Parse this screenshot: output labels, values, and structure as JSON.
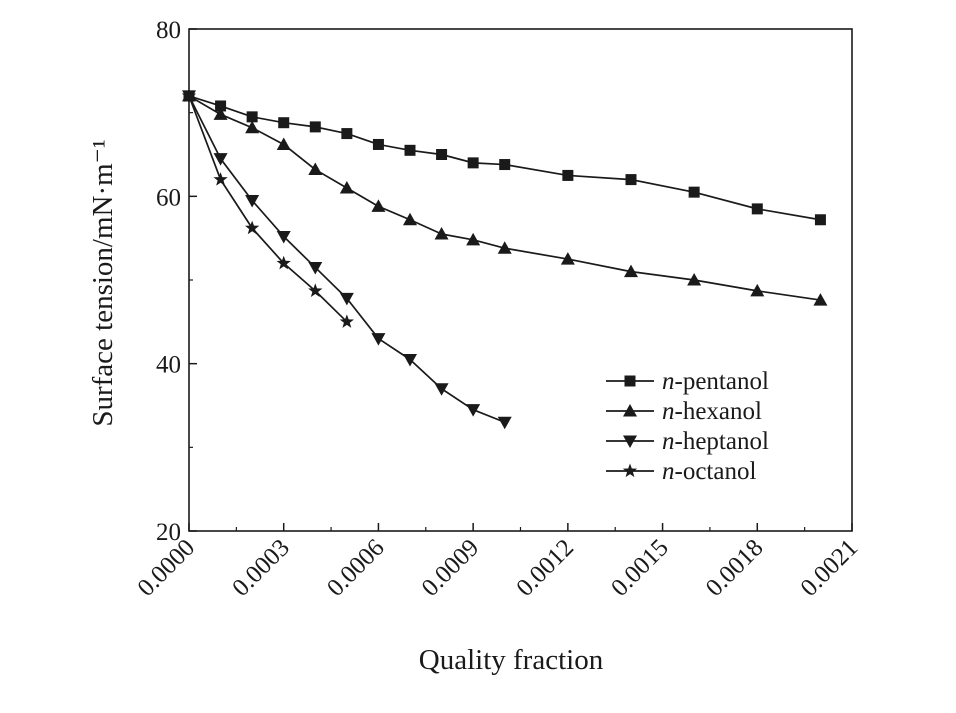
{
  "chart_data": {
    "type": "line",
    "xlabel": "Quality fraction",
    "ylabel": "Surface tension/mN·m⁻¹",
    "xlim": [
      0,
      0.0021
    ],
    "ylim": [
      20,
      80
    ],
    "x_ticks": [
      "0.0000",
      "0.0003",
      "0.0006",
      "0.0009",
      "0.0012",
      "0.0015",
      "0.0018",
      "0.0021"
    ],
    "y_ticks": [
      "20",
      "40",
      "60",
      "80"
    ],
    "grid": false,
    "legend_position": "lower-right",
    "series": [
      {
        "name": "n-pentanol",
        "marker": "square",
        "x": [
          0,
          0.0001,
          0.0002,
          0.0003,
          0.0004,
          0.0005,
          0.0006,
          0.0007,
          0.0008,
          0.0009,
          0.001,
          0.0012,
          0.0014,
          0.0016,
          0.0018,
          0.002
        ],
        "y": [
          72.0,
          70.8,
          69.5,
          68.8,
          68.3,
          67.5,
          66.2,
          65.5,
          65.0,
          64.0,
          63.8,
          62.5,
          62.0,
          60.5,
          58.5,
          57.2
        ]
      },
      {
        "name": "n-hexanol",
        "marker": "triangle-up",
        "x": [
          0,
          0.0001,
          0.0002,
          0.0003,
          0.0004,
          0.0005,
          0.0006,
          0.0007,
          0.0008,
          0.0009,
          0.001,
          0.0012,
          0.0014,
          0.0016,
          0.0018,
          0.002
        ],
        "y": [
          72.0,
          69.8,
          68.2,
          66.2,
          63.2,
          61.0,
          58.8,
          57.2,
          55.5,
          54.8,
          53.8,
          52.5,
          51.0,
          50.0,
          48.7,
          47.6
        ]
      },
      {
        "name": "n-heptanol",
        "marker": "triangle-down",
        "x": [
          0,
          0.0001,
          0.0002,
          0.0003,
          0.0004,
          0.0005,
          0.0006,
          0.0007,
          0.0008,
          0.0009,
          0.001
        ],
        "y": [
          72.0,
          64.5,
          59.5,
          55.2,
          51.5,
          47.8,
          43.0,
          40.5,
          37.0,
          34.5,
          33.0
        ]
      },
      {
        "name": "n-octanol",
        "marker": "star",
        "x": [
          0,
          0.0001,
          0.0002,
          0.0003,
          0.0004,
          0.0005
        ],
        "y": [
          72.0,
          62.0,
          56.2,
          52.0,
          48.7,
          45.0
        ]
      }
    ]
  }
}
